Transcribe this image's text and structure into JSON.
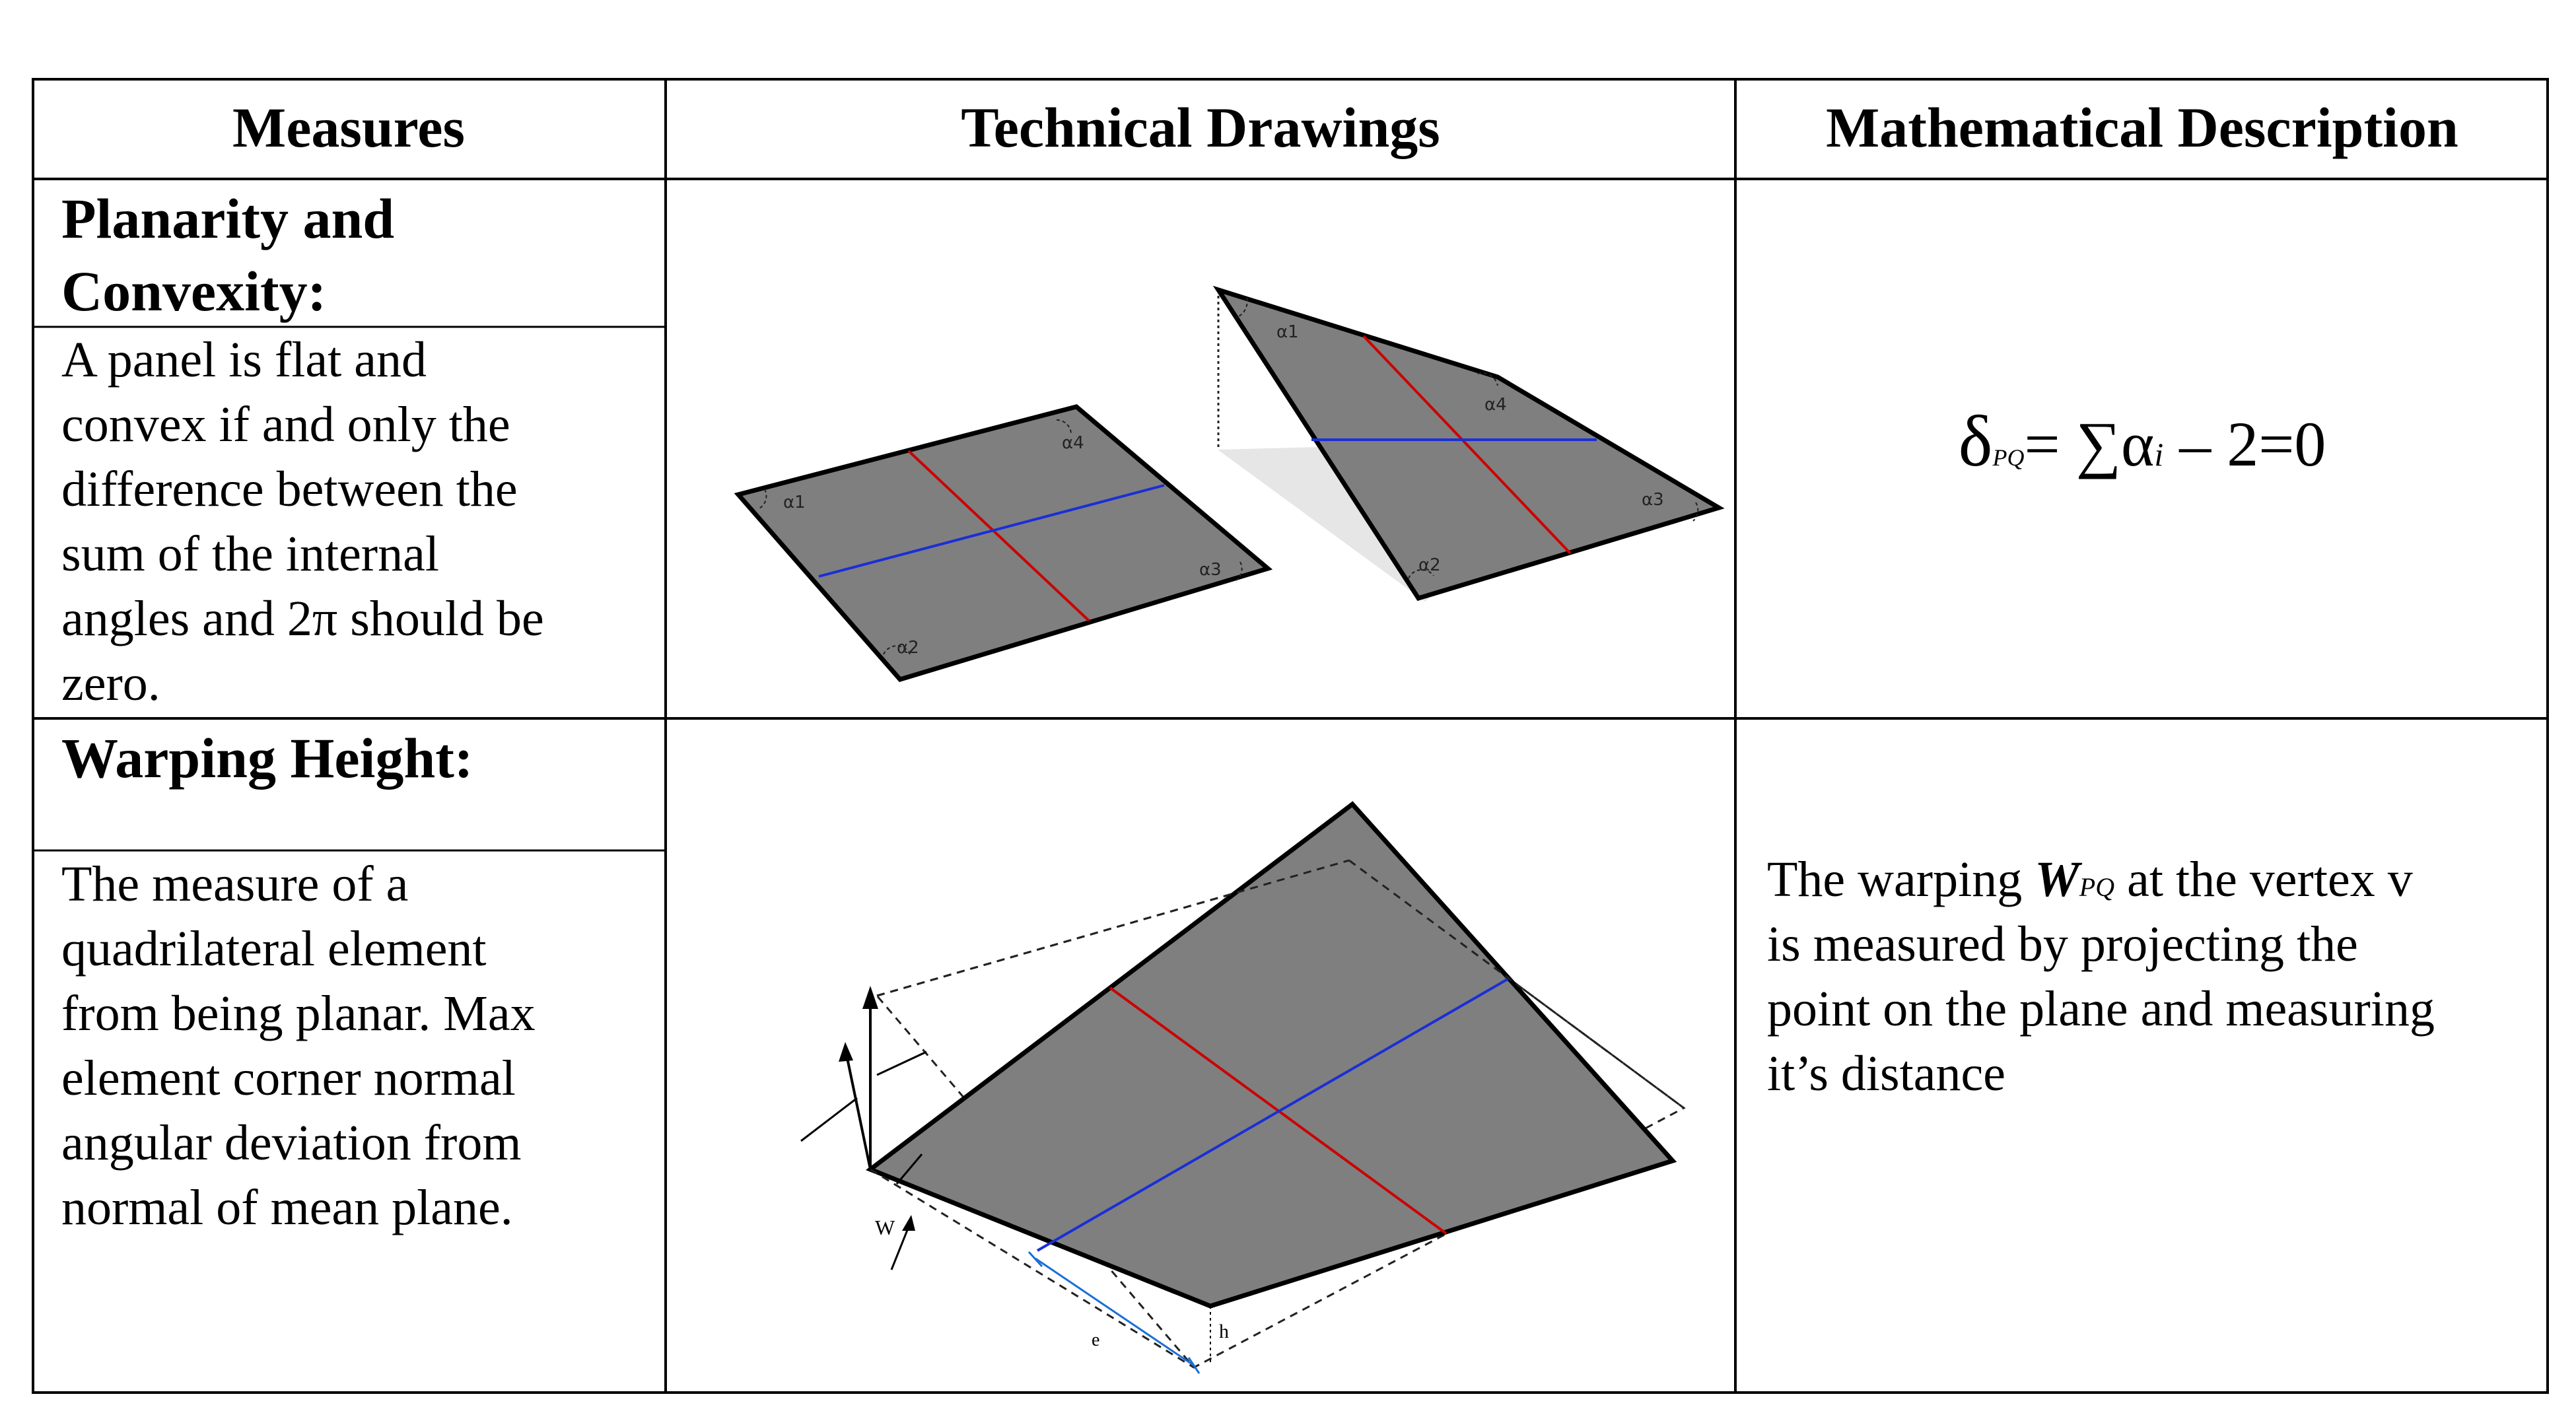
{
  "table": {
    "headers": {
      "measures": "Measures",
      "drawings": "Technical Drawings",
      "math": "Mathematical Description"
    },
    "rows": [
      {
        "title_line1": "Planarity and",
        "title_line2": "Convexity:",
        "desc_lines": [
          "A panel is flat and",
          "convex if and only the",
          "difference between the",
          "sum of the internal",
          "angles and 2π should be",
          "zero."
        ],
        "formula": {
          "delta": "δ",
          "sub": "PQ",
          "eq": "= ∑α",
          "i": "i",
          "rest": " – 2=0"
        },
        "drawing_labels": {
          "a1": "α1",
          "a2": "α2",
          "a3": "α3",
          "a4": "α4",
          "b1": "α1",
          "b2": "α2",
          "b3": "α3",
          "b4": "α4"
        }
      },
      {
        "title": "Warping Height:",
        "desc_lines": [
          "The measure of a",
          "quadrilateral element",
          "from being planar. Max",
          "element corner normal",
          "angular deviation from",
          "normal of mean plane."
        ],
        "math_lines": {
          "l1_a": "The warping ",
          "l1_w": "W",
          "l1_sub": "PQ",
          "l1_b": " at the vertex v",
          "l2": "is measured by projecting the",
          "l3": "point on the plane and measuring",
          "l4": "it’s distance"
        },
        "drawing_labels": {
          "w": "W",
          "e": "e",
          "h": "h"
        }
      }
    ]
  }
}
